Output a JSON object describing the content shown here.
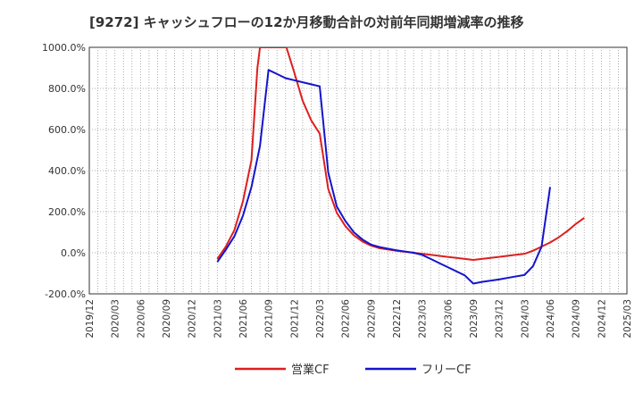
{
  "chart_data": {
    "type": "line",
    "title": "[9272]  キャッシュフローの12か月移動合計の対前年同期増減率の推移",
    "xlabel": "",
    "ylabel": "",
    "ylim": [
      -200,
      1000
    ],
    "yticks": [
      -200,
      0,
      200,
      400,
      600,
      800,
      1000
    ],
    "ytick_labels": [
      "-200.0%",
      "0.0%",
      "200.0%",
      "400.0%",
      "600.0%",
      "800.0%",
      "1000.0%"
    ],
    "x_tick_labels": [
      "2019/12",
      "2020/03",
      "2020/06",
      "2020/09",
      "2020/12",
      "2021/03",
      "2021/06",
      "2021/09",
      "2021/12",
      "2022/03",
      "2022/06",
      "2022/09",
      "2022/12",
      "2023/03",
      "2023/06",
      "2023/09",
      "2023/12",
      "2024/03",
      "2024/06",
      "2024/09",
      "2024/12",
      "2025/03"
    ],
    "grid": true,
    "legend_position": "bottom-center",
    "series": [
      {
        "name": "営業CF",
        "color": "#dd1f1f",
        "points": [
          [
            15,
            -30
          ],
          [
            16,
            30
          ],
          [
            17,
            110
          ],
          [
            18,
            250
          ],
          [
            19,
            450
          ],
          [
            19.7,
            900
          ],
          [
            20,
            1000
          ],
          [
            23.1,
            1000
          ],
          [
            24,
            880
          ],
          [
            25,
            740
          ],
          [
            26,
            645
          ],
          [
            27,
            580
          ],
          [
            28,
            310
          ],
          [
            29,
            195
          ],
          [
            30,
            130
          ],
          [
            31,
            85
          ],
          [
            32,
            55
          ],
          [
            33,
            35
          ],
          [
            34,
            22
          ],
          [
            36,
            10
          ],
          [
            38,
            0
          ],
          [
            40,
            -10
          ],
          [
            42,
            -20
          ],
          [
            44,
            -30
          ],
          [
            45,
            -35
          ],
          [
            46,
            -30
          ],
          [
            48,
            -20
          ],
          [
            50,
            -10
          ],
          [
            51,
            -5
          ],
          [
            52,
            10
          ],
          [
            53,
            30
          ],
          [
            54,
            50
          ],
          [
            55,
            75
          ],
          [
            56,
            105
          ],
          [
            57,
            140
          ],
          [
            58,
            170
          ]
        ]
      },
      {
        "name": "フリーCF",
        "color": "#1414cc",
        "points": [
          [
            15,
            -45
          ],
          [
            16,
            15
          ],
          [
            17,
            80
          ],
          [
            18,
            180
          ],
          [
            19,
            320
          ],
          [
            20,
            520
          ],
          [
            21,
            890
          ],
          [
            22,
            870
          ],
          [
            23,
            850
          ],
          [
            24,
            840
          ],
          [
            25,
            830
          ],
          [
            26,
            820
          ],
          [
            27,
            810
          ],
          [
            28,
            390
          ],
          [
            29,
            225
          ],
          [
            30,
            155
          ],
          [
            31,
            100
          ],
          [
            32,
            65
          ],
          [
            33,
            40
          ],
          [
            34,
            28
          ],
          [
            36,
            12
          ],
          [
            38,
            0
          ],
          [
            39,
            -10
          ],
          [
            40,
            -30
          ],
          [
            42,
            -70
          ],
          [
            44,
            -110
          ],
          [
            45,
            -150
          ],
          [
            46,
            -142
          ],
          [
            48,
            -130
          ],
          [
            50,
            -115
          ],
          [
            51,
            -108
          ],
          [
            52,
            -65
          ],
          [
            53,
            30
          ],
          [
            54,
            320
          ]
        ]
      }
    ]
  }
}
